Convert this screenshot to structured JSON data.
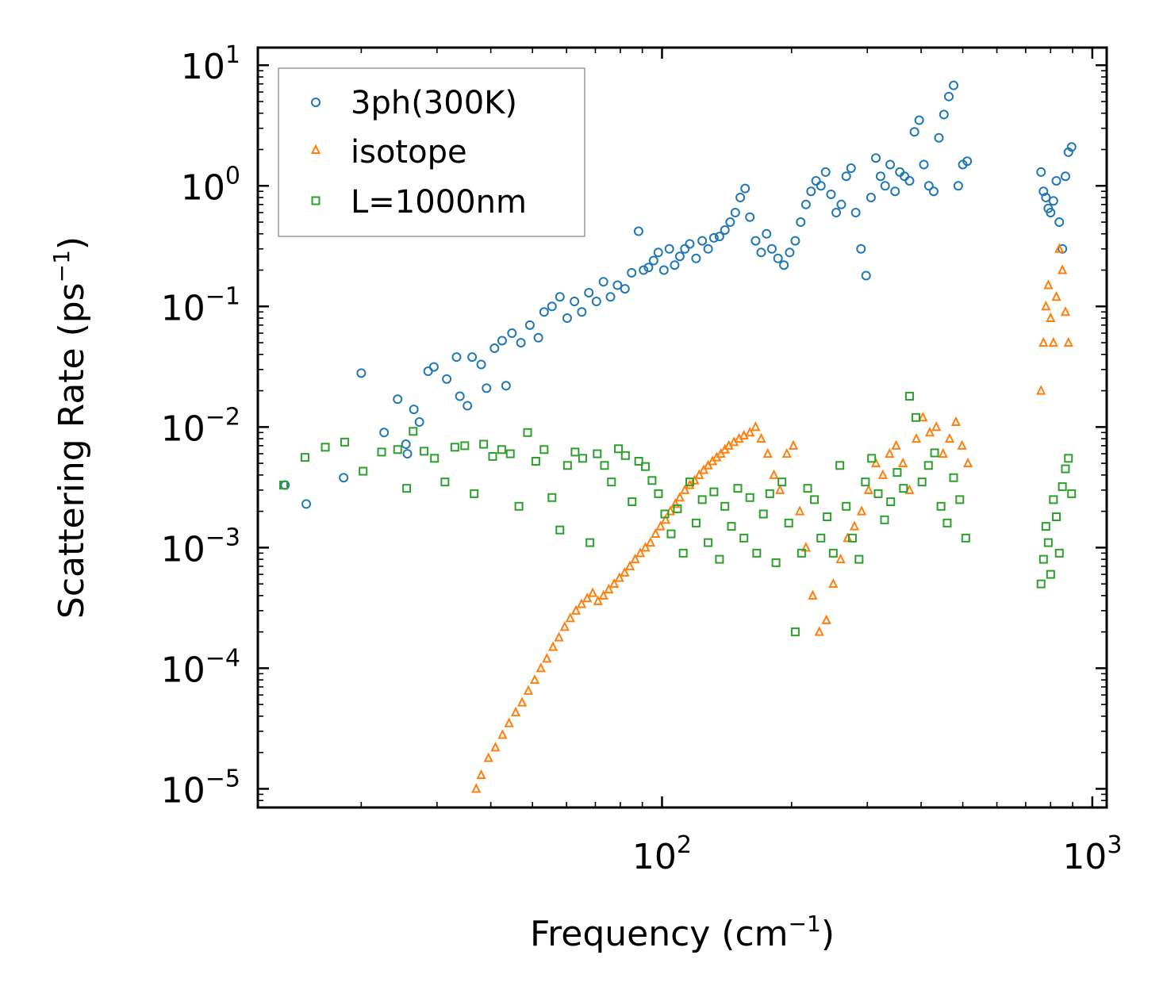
{
  "chart_data": {
    "type": "scatter",
    "title": "",
    "xlabel": "Frequency (cm",
    "xlabel_sup": "−1",
    "xlabel_end": ")",
    "ylabel": "Scattering Rate (ps",
    "ylabel_sup": "−1",
    "ylabel_end": ")",
    "xscale": "log",
    "yscale": "log",
    "xlim": [
      11.5,
      1080
    ],
    "ylim": [
      7e-06,
      14
    ],
    "x_ticks": [
      {
        "value": 100,
        "base": "10",
        "exp": "2"
      },
      {
        "value": 1000,
        "base": "10",
        "exp": "3"
      }
    ],
    "y_ticks": [
      {
        "value": 10,
        "base": "10",
        "exp": "1"
      },
      {
        "value": 1,
        "base": "10",
        "exp": "0"
      },
      {
        "value": 0.1,
        "base": "10",
        "exp": "−1"
      },
      {
        "value": 0.01,
        "base": "10",
        "exp": "−2"
      },
      {
        "value": 0.001,
        "base": "10",
        "exp": "−3"
      },
      {
        "value": 0.0001,
        "base": "10",
        "exp": "−4"
      },
      {
        "value": 1e-05,
        "base": "10",
        "exp": "−5"
      }
    ],
    "legend_position": "top-left",
    "series": [
      {
        "name": "3ph(300K)",
        "color": "#1f77b4",
        "marker": "circle",
        "x": [
          13.3,
          14.9,
          18.2,
          20.0,
          22.6,
          24.3,
          25.4,
          25.6,
          26.5,
          27.3,
          28.6,
          29.5,
          31.6,
          33.3,
          33.9,
          35.3,
          36.2,
          38.0,
          39.1,
          40.8,
          42.5,
          43.4,
          44.8,
          47.0,
          49.3,
          51.6,
          53.2,
          55.5,
          57.9,
          60.2,
          62.6,
          65.1,
          67.6,
          70.4,
          73.1,
          75.9,
          78.8,
          82.0,
          85.0,
          88.2,
          90.6,
          93.0,
          95.6,
          98.0,
          101.0,
          104.0,
          107.0,
          110.0,
          113.0,
          116.0,
          120.0,
          124.0,
          128.0,
          132.0,
          136.0,
          140.0,
          144.0,
          148.0,
          152.0,
          156.0,
          160.0,
          165.0,
          170.0,
          175.0,
          180.0,
          186.0,
          192.0,
          198.0,
          204.0,
          210.0,
          216.0,
          222.0,
          228.0,
          234.0,
          240.0,
          247.0,
          254.0,
          261.0,
          268.0,
          275.0,
          282.0,
          290.0,
          298.0,
          306.0,
          314.0,
          322.0,
          330.0,
          339.0,
          348.0,
          357.0,
          366.0,
          376.0,
          386.0,
          396.0,
          406.0,
          417.0,
          428.0,
          440.0,
          452.0,
          464.0,
          476.0,
          488.0,
          500.0,
          512.0,
          760.0,
          770.0,
          780.0,
          790.0,
          800.0,
          812.0,
          825.0,
          838.0,
          852.0,
          866.0,
          880.0,
          895.0
        ],
        "y": [
          0.0033,
          0.0023,
          0.0038,
          0.028,
          0.009,
          0.017,
          0.0072,
          0.006,
          0.014,
          0.011,
          0.029,
          0.0315,
          0.025,
          0.038,
          0.018,
          0.015,
          0.038,
          0.033,
          0.021,
          0.045,
          0.052,
          0.022,
          0.06,
          0.05,
          0.07,
          0.055,
          0.09,
          0.1,
          0.12,
          0.08,
          0.11,
          0.09,
          0.13,
          0.11,
          0.16,
          0.12,
          0.15,
          0.14,
          0.19,
          0.42,
          0.2,
          0.21,
          0.24,
          0.28,
          0.2,
          0.3,
          0.22,
          0.26,
          0.3,
          0.33,
          0.25,
          0.35,
          0.3,
          0.37,
          0.38,
          0.43,
          0.5,
          0.6,
          0.8,
          0.95,
          0.55,
          0.35,
          0.28,
          0.4,
          0.3,
          0.25,
          0.22,
          0.28,
          0.35,
          0.5,
          0.7,
          0.9,
          1.1,
          1.0,
          1.3,
          0.85,
          0.6,
          0.7,
          1.2,
          1.4,
          0.6,
          0.3,
          0.18,
          0.8,
          1.7,
          1.2,
          1.0,
          1.5,
          0.9,
          1.3,
          1.2,
          1.1,
          2.8,
          3.5,
          1.5,
          1.0,
          0.9,
          2.5,
          3.9,
          5.5,
          6.8,
          1.0,
          1.5,
          1.6,
          1.3,
          0.9,
          0.8,
          0.65,
          0.6,
          0.75,
          1.1,
          0.5,
          0.3,
          1.2,
          1.9,
          2.1
        ]
      },
      {
        "name": "isotope",
        "color": "#ff7f0e",
        "marker": "triangle",
        "x": [
          37.0,
          38.0,
          39.5,
          41.0,
          42.6,
          44.1,
          45.7,
          47.3,
          48.9,
          50.6,
          52.3,
          54.0,
          55.8,
          57.6,
          59.4,
          61.2,
          63.1,
          65.0,
          67.0,
          69.0,
          71.0,
          73.1,
          75.2,
          77.4,
          79.6,
          81.9,
          84.2,
          86.6,
          89.0,
          91.5,
          94.0,
          96.6,
          99.2,
          101.9,
          104.6,
          107.4,
          110.0,
          113.0,
          116.0,
          119.0,
          122.0,
          125.0,
          128.0,
          131.0,
          134.0,
          137.0,
          140.0,
          143.0,
          147.0,
          151.0,
          155.0,
          160.0,
          165.0,
          170.0,
          176.0,
          182.0,
          188.0,
          195.0,
          202.0,
          209.0,
          216.0,
          224.0,
          232.0,
          241.0,
          250.0,
          260.0,
          270.0,
          280.0,
          291.0,
          302.0,
          314.0,
          326.0,
          338.0,
          350.0,
          363.0,
          376.0,
          390.0,
          404.0,
          419.0,
          434.0,
          450.0,
          466.0,
          482.0,
          498.0,
          514.0,
          760.0,
          770.0,
          780.0,
          790.0,
          800.0,
          812.0,
          825.0,
          838.0,
          852.0,
          866.0,
          880.0
        ],
        "y": [
          1e-05,
          1.3e-05,
          1.8e-05,
          2.2e-05,
          2.8e-05,
          3.5e-05,
          4.3e-05,
          5.2e-05,
          6.5e-05,
          8e-05,
          0.0001,
          0.00012,
          0.00015,
          0.00018,
          0.00022,
          0.00026,
          0.0003,
          0.00034,
          0.00038,
          0.00042,
          0.00036,
          0.0004,
          0.00045,
          0.0005,
          0.00056,
          0.00062,
          0.0007,
          0.0008,
          0.0009,
          0.001,
          0.0011,
          0.0013,
          0.0015,
          0.0017,
          0.002,
          0.0023,
          0.0026,
          0.003,
          0.0033,
          0.0036,
          0.004,
          0.0044,
          0.0048,
          0.0052,
          0.0056,
          0.006,
          0.0065,
          0.007,
          0.0075,
          0.008,
          0.0085,
          0.009,
          0.01,
          0.008,
          0.006,
          0.004,
          0.003,
          0.006,
          0.007,
          0.002,
          0.001,
          0.0004,
          0.0002,
          0.00025,
          0.0005,
          0.0008,
          0.0012,
          0.0015,
          0.002,
          0.003,
          0.005,
          0.004,
          0.006,
          0.007,
          0.005,
          0.003,
          0.008,
          0.012,
          0.009,
          0.01,
          0.006,
          0.008,
          0.011,
          0.007,
          0.005,
          0.02,
          0.05,
          0.1,
          0.15,
          0.08,
          0.05,
          0.12,
          0.3,
          0.2,
          0.09,
          0.05
        ]
      },
      {
        "name": "L=1000nm",
        "color": "#2ca02c",
        "marker": "square",
        "x": [
          13.2,
          14.8,
          16.5,
          18.3,
          20.2,
          22.3,
          24.3,
          25.5,
          26.4,
          28.0,
          29.6,
          31.3,
          33.0,
          34.8,
          36.6,
          38.5,
          40.4,
          42.4,
          44.4,
          46.5,
          48.7,
          50.9,
          53.2,
          55.5,
          57.9,
          60.3,
          62.8,
          65.4,
          68.0,
          70.7,
          73.5,
          76.3,
          79.2,
          82.2,
          85.2,
          88.3,
          91.5,
          94.8,
          98.1,
          101.5,
          105.0,
          108.6,
          112.0,
          116.0,
          120.0,
          124.0,
          128.0,
          132.0,
          136.0,
          140.0,
          145.0,
          150.0,
          155.0,
          160.0,
          166.0,
          172.0,
          178.0,
          184.0,
          190.0,
          197.0,
          204.0,
          211.0,
          218.0,
          226.0,
          234.0,
          242.0,
          250.0,
          259.0,
          268.0,
          277.0,
          287.0,
          297.0,
          307.0,
          318.0,
          329.0,
          340.0,
          352.0,
          364.0,
          376.0,
          389.0,
          402.0,
          416.0,
          430.0,
          445.0,
          460.0,
          476.0,
          492.0,
          508.0,
          760.0,
          770.0,
          780.0,
          790.0,
          800.0,
          812.0,
          825.0,
          838.0,
          852.0,
          866.0,
          880.0,
          895.0
        ],
        "y": [
          0.0033,
          0.0056,
          0.0068,
          0.0075,
          0.0043,
          0.0062,
          0.0065,
          0.0031,
          0.0092,
          0.0063,
          0.0055,
          0.0035,
          0.0068,
          0.007,
          0.0028,
          0.0072,
          0.0057,
          0.0065,
          0.006,
          0.0022,
          0.009,
          0.0052,
          0.0065,
          0.0026,
          0.0014,
          0.0048,
          0.0062,
          0.0055,
          0.0011,
          0.006,
          0.0048,
          0.0035,
          0.0066,
          0.0058,
          0.0024,
          0.0052,
          0.0047,
          0.0036,
          0.0028,
          0.0019,
          0.0013,
          0.0021,
          0.0009,
          0.0035,
          0.0016,
          0.0025,
          0.0011,
          0.0029,
          0.0008,
          0.0022,
          0.0015,
          0.0031,
          0.0012,
          0.0026,
          0.0009,
          0.0019,
          0.0028,
          0.00075,
          0.0035,
          0.0016,
          0.0002,
          0.0009,
          0.0031,
          0.0025,
          0.0012,
          0.0018,
          0.0009,
          0.0048,
          0.0022,
          0.0012,
          0.0008,
          0.0035,
          0.0055,
          0.0028,
          0.0017,
          0.0024,
          0.0042,
          0.0031,
          0.018,
          0.012,
          0.0035,
          0.0048,
          0.0061,
          0.0022,
          0.0016,
          0.0038,
          0.0025,
          0.0012,
          0.0005,
          0.0008,
          0.0015,
          0.0011,
          0.0006,
          0.0025,
          0.0018,
          0.0009,
          0.0032,
          0.0045,
          0.0055,
          0.0028
        ]
      }
    ]
  }
}
